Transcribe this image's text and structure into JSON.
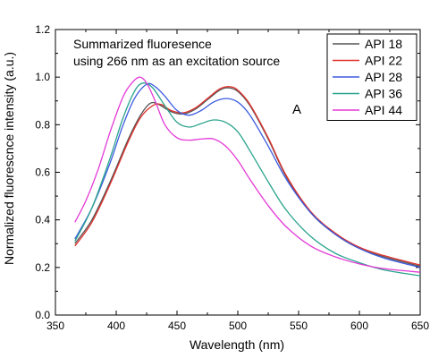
{
  "chart_data": {
    "type": "line",
    "annotation_lines": [
      "Summarized fluoresence",
      "using 266 nm as an excitation source"
    ],
    "panel_label": "A",
    "xlabel": "Wavelength (nm)",
    "ylabel": "Normalized fluorescnce intensity (a.u.)",
    "xlim": [
      350,
      650
    ],
    "ylim": [
      0.0,
      1.2
    ],
    "xticks": [
      350,
      400,
      450,
      500,
      550,
      600,
      650
    ],
    "xtick_labels": [
      "350",
      "400",
      "450",
      "500",
      "550",
      "600",
      "650"
    ],
    "yticks": [
      0.0,
      0.2,
      0.4,
      0.6,
      0.8,
      1.0,
      1.2
    ],
    "ytick_labels": [
      "0.0",
      "0.2",
      "0.4",
      "0.6",
      "0.8",
      "1.0",
      "1.2"
    ],
    "grid": false,
    "legend_position": "top-right",
    "series": [
      {
        "name": "API 18",
        "color": "#555555",
        "x": [
          366,
          380,
          395,
          410,
          420,
          428,
          435,
          445,
          455,
          465,
          475,
          485,
          492,
          500,
          510,
          525,
          540,
          560,
          580,
          600,
          620,
          650
        ],
        "y": [
          0.3,
          0.4,
          0.56,
          0.74,
          0.84,
          0.89,
          0.885,
          0.855,
          0.845,
          0.865,
          0.905,
          0.945,
          0.955,
          0.94,
          0.88,
          0.74,
          0.58,
          0.43,
          0.34,
          0.28,
          0.245,
          0.205
        ]
      },
      {
        "name": "API 22",
        "color": "#e0302c",
        "x": [
          366,
          380,
          395,
          410,
          420,
          430,
          437,
          445,
          455,
          465,
          475,
          485,
          493,
          500,
          510,
          525,
          540,
          560,
          580,
          600,
          620,
          650
        ],
        "y": [
          0.29,
          0.39,
          0.55,
          0.73,
          0.83,
          0.88,
          0.885,
          0.86,
          0.85,
          0.87,
          0.91,
          0.95,
          0.96,
          0.945,
          0.885,
          0.745,
          0.585,
          0.435,
          0.345,
          0.285,
          0.25,
          0.21
        ]
      },
      {
        "name": "API 28",
        "color": "#3c5be0",
        "x": [
          366,
          380,
          395,
          405,
          415,
          425,
          432,
          440,
          450,
          460,
          470,
          480,
          490,
          500,
          510,
          525,
          540,
          560,
          580,
          600,
          620,
          650
        ],
        "y": [
          0.32,
          0.45,
          0.64,
          0.79,
          0.91,
          0.97,
          0.96,
          0.92,
          0.86,
          0.84,
          0.86,
          0.895,
          0.91,
          0.895,
          0.84,
          0.71,
          0.57,
          0.43,
          0.34,
          0.28,
          0.24,
          0.2
        ]
      },
      {
        "name": "API 36",
        "color": "#2ba38e",
        "x": [
          366,
          380,
          395,
          405,
          415,
          422,
          430,
          440,
          450,
          460,
          470,
          480,
          490,
          500,
          510,
          525,
          540,
          560,
          580,
          600,
          620,
          650
        ],
        "y": [
          0.31,
          0.45,
          0.66,
          0.82,
          0.94,
          0.975,
          0.955,
          0.88,
          0.81,
          0.79,
          0.805,
          0.82,
          0.81,
          0.77,
          0.69,
          0.56,
          0.44,
          0.33,
          0.26,
          0.22,
          0.19,
          0.165
        ]
      },
      {
        "name": "API 44",
        "color": "#e338d6",
        "x": [
          366,
          375,
          385,
          395,
          405,
          412,
          419,
          425,
          432,
          440,
          450,
          460,
          470,
          480,
          490,
          500,
          510,
          525,
          540,
          560,
          580,
          600,
          620,
          650
        ],
        "y": [
          0.39,
          0.48,
          0.61,
          0.77,
          0.91,
          0.97,
          1.0,
          0.975,
          0.9,
          0.8,
          0.745,
          0.735,
          0.74,
          0.74,
          0.71,
          0.65,
          0.57,
          0.46,
          0.37,
          0.29,
          0.245,
          0.215,
          0.195,
          0.18
        ]
      }
    ]
  }
}
